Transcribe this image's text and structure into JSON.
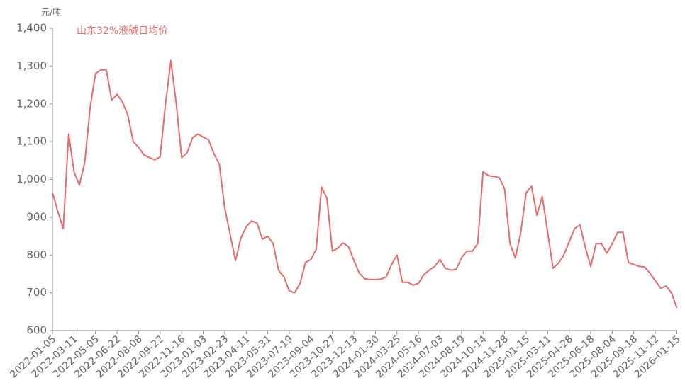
{
  "chart_data": {
    "type": "line",
    "y_unit_label": "元/吨",
    "categories": [
      "2022-01-05",
      null,
      null,
      null,
      "2022-03-11",
      null,
      null,
      null,
      "2022-05-05",
      null,
      null,
      null,
      "2022-06-22",
      null,
      null,
      null,
      "2022-08-08",
      null,
      null,
      null,
      "2022-09-22",
      null,
      null,
      null,
      "2022-11-16",
      null,
      null,
      null,
      "2023-01-03",
      null,
      null,
      null,
      "2023-02-23",
      null,
      null,
      null,
      "2023-04-11",
      null,
      null,
      null,
      "2023-05-31",
      null,
      null,
      null,
      "2023-07-19",
      null,
      null,
      null,
      "2023-09-04",
      null,
      null,
      null,
      "2023-10-27",
      null,
      null,
      null,
      "2023-12-13",
      null,
      null,
      null,
      "2024-01-30",
      null,
      null,
      null,
      "2024-03-25",
      null,
      null,
      null,
      "2024-05-16",
      null,
      null,
      null,
      "2024-07-03",
      null,
      null,
      null,
      "2024-08-19",
      null,
      null,
      null,
      "2024-10-14",
      null,
      null,
      null,
      "2024-11-28",
      null,
      null,
      null,
      "2025-01-15",
      null,
      null,
      null,
      "2025-03-11",
      null,
      null,
      null,
      "2025-04-28",
      null,
      null,
      null,
      "2025-06-18",
      null,
      null,
      null,
      "2025-08-04",
      null,
      null,
      null,
      "2025-09-18",
      null,
      null,
      null,
      "2025-11-12",
      null,
      null,
      null,
      "2026-01-15"
    ],
    "series": [
      {
        "name": "山东32%液碱日均价",
        "color": "#e86a6a",
        "values": [
          965,
          915,
          870,
          1120,
          1020,
          985,
          1045,
          1190,
          1280,
          1290,
          1290,
          1210,
          1225,
          1205,
          1170,
          1100,
          1085,
          1065,
          1058,
          1052,
          1060,
          1200,
          1315,
          1200,
          1058,
          1070,
          1110,
          1120,
          1112,
          1105,
          1068,
          1040,
          925,
          855,
          785,
          845,
          875,
          890,
          885,
          842,
          850,
          830,
          760,
          742,
          705,
          700,
          725,
          780,
          788,
          815,
          980,
          950,
          810,
          818,
          832,
          822,
          785,
          752,
          737,
          735,
          735,
          736,
          742,
          775,
          800,
          728,
          728,
          720,
          725,
          748,
          760,
          770,
          788,
          765,
          760,
          762,
          793,
          810,
          810,
          830,
          1020,
          1010,
          1008,
          1005,
          975,
          830,
          792,
          860,
          965,
          982,
          905,
          955,
          860,
          765,
          778,
          800,
          835,
          870,
          880,
          820,
          770,
          830,
          830,
          805,
          830,
          860,
          860,
          780,
          775,
          770,
          768,
          752,
          732,
          712,
          718,
          700,
          660
        ]
      }
    ],
    "ylim": [
      600,
      1400
    ],
    "yticks": [
      600,
      700,
      800,
      900,
      {
        "value": 1000,
        "label": "1,000"
      },
      {
        "value": 1100,
        "label": "1,100"
      },
      {
        "value": 1200,
        "label": "1,200"
      },
      {
        "value": 1300,
        "label": "1,300"
      },
      {
        "value": 1400,
        "label": "1,400"
      }
    ],
    "grid": false
  }
}
